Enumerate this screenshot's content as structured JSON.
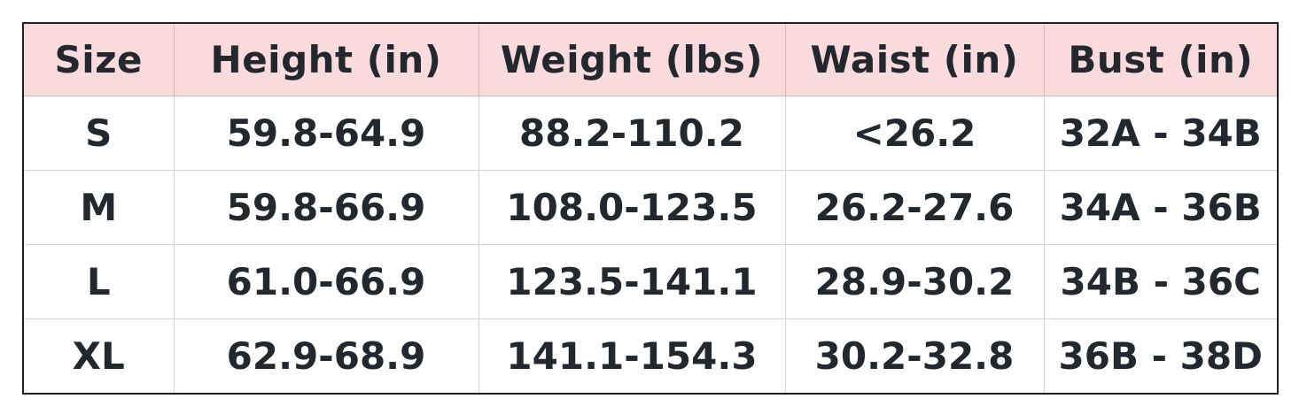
{
  "table": {
    "headers": [
      "Size",
      "Height (in)",
      "Weight (lbs)",
      "Waist (in)",
      "Bust (in)"
    ],
    "rows": [
      [
        "S",
        "59.8-64.9",
        "88.2-110.2",
        "<26.2",
        "32A - 34B"
      ],
      [
        "M",
        "59.8-66.9",
        "108.0-123.5",
        "26.2-27.6",
        "34A - 36B"
      ],
      [
        "L",
        "61.0-66.9",
        "123.5-141.1",
        "28.9-30.2",
        "34B - 36C"
      ],
      [
        "XL",
        "62.9-68.9",
        "141.1-154.3",
        "30.2-32.8",
        "36B - 38D"
      ]
    ]
  },
  "colors": {
    "header_bg": "#f9dadd",
    "text": "#23272e",
    "border": "#222222"
  }
}
